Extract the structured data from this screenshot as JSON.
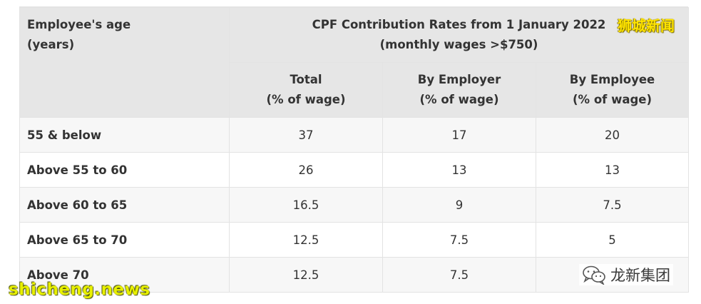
{
  "header": {
    "age_line1": "Employee's age",
    "age_line2": "(years)",
    "group_line1": "CPF Contribution Rates from 1 January 2022",
    "group_line2": "(monthly wages >$750)",
    "cols": [
      {
        "line1": "Total",
        "line2": "(% of wage)"
      },
      {
        "line1": "By Employer",
        "line2": "(% of wage)"
      },
      {
        "line1": "By Employee",
        "line2": "(% of wage)"
      }
    ]
  },
  "rows": [
    {
      "age": "55 & below",
      "total": "37",
      "employer": "17",
      "employee": "20"
    },
    {
      "age": "Above 55 to 60",
      "total": "26",
      "employer": "13",
      "employee": "13"
    },
    {
      "age": "Above 60 to 65",
      "total": "16.5",
      "employer": "9",
      "employee": "7.5"
    },
    {
      "age": "Above 65 to 70",
      "total": "12.5",
      "employer": "7.5",
      "employee": "5"
    },
    {
      "age": "Above 70",
      "total": "12.5",
      "employer": "7.5",
      "employee": ""
    }
  ],
  "watermarks": {
    "top": "狮城新闻",
    "bottom": "shicheng.news",
    "corp": "龙新集团"
  }
}
